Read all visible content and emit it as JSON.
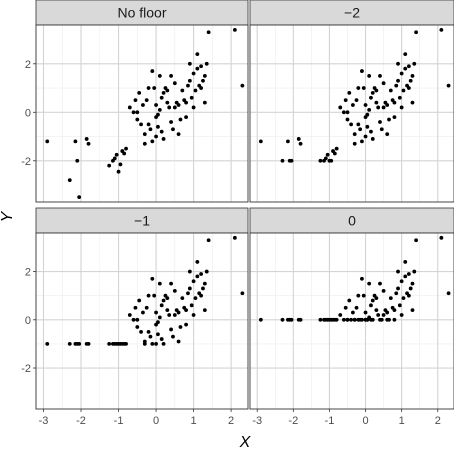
{
  "chart_data": {
    "type": "scatter",
    "xlabel": "X",
    "ylabel": "Y",
    "xlim": [
      -3.2,
      2.45
    ],
    "ylim": [
      -3.7,
      3.6
    ],
    "x_ticks": [
      -3,
      -2,
      -1,
      0,
      1,
      2
    ],
    "x_tick_labels": [
      "-3",
      "-2",
      "-1",
      "0",
      "1",
      "2"
    ],
    "y_ticks": [
      -2,
      0,
      2
    ],
    "y_tick_labels": [
      "-2",
      "0",
      "2"
    ],
    "grid": true,
    "colors": {
      "panel_bg": "#ffffff",
      "panel_border": "#333333",
      "grid_major": "#d4d4d4",
      "grid_minor": "#ececec",
      "strip_bg": "#d9d9d9",
      "point": "#000000"
    },
    "base_points": [
      [
        -2.9,
        -1.2
      ],
      [
        -2.3,
        -2.8
      ],
      [
        -2.15,
        -1.2
      ],
      [
        -2.1,
        -2.0
      ],
      [
        -2.05,
        -3.5
      ],
      [
        -1.85,
        -1.1
      ],
      [
        -1.8,
        -1.3
      ],
      [
        -1.25,
        -2.2
      ],
      [
        -1.15,
        -2.0
      ],
      [
        -1.1,
        -1.9
      ],
      [
        -1.05,
        -1.75
      ],
      [
        -1.0,
        -2.45
      ],
      [
        -0.95,
        -2.15
      ],
      [
        -0.9,
        -1.6
      ],
      [
        -0.85,
        -1.7
      ],
      [
        -0.8,
        -1.5
      ],
      [
        -0.7,
        0.2
      ],
      [
        -0.6,
        0.0
      ],
      [
        -0.55,
        0.5
      ],
      [
        -0.5,
        -0.3
      ],
      [
        -0.45,
        0.8
      ],
      [
        -0.4,
        -0.5
      ],
      [
        -0.35,
        0.3
      ],
      [
        -0.3,
        -0.9
      ],
      [
        -0.25,
        0.5
      ],
      [
        -0.2,
        1.0
      ],
      [
        -0.15,
        -0.7
      ],
      [
        -0.1,
        1.7
      ],
      [
        -0.1,
        -1.2
      ],
      [
        -0.05,
        1.0
      ],
      [
        0.0,
        -0.2
      ],
      [
        0.0,
        0.3
      ],
      [
        0.05,
        -0.6
      ],
      [
        0.1,
        0.1
      ],
      [
        0.1,
        1.5
      ],
      [
        0.15,
        -0.8
      ],
      [
        0.2,
        0.8
      ],
      [
        0.25,
        1.0
      ],
      [
        0.3,
        0.4
      ],
      [
        0.35,
        0.2
      ],
      [
        0.4,
        -0.4
      ],
      [
        0.45,
        -0.7
      ],
      [
        0.5,
        1.2
      ],
      [
        0.55,
        0.4
      ],
      [
        0.6,
        0.3
      ],
      [
        0.65,
        -0.3
      ],
      [
        0.7,
        0.9
      ],
      [
        0.75,
        0.5
      ],
      [
        0.8,
        0.4
      ],
      [
        0.85,
        1.1
      ],
      [
        0.9,
        1.3
      ],
      [
        0.95,
        0.6
      ],
      [
        1.0,
        1.6
      ],
      [
        1.05,
        0.9
      ],
      [
        1.1,
        2.4
      ],
      [
        1.15,
        1.1
      ],
      [
        1.2,
        1.9
      ],
      [
        1.25,
        1.3
      ],
      [
        1.3,
        0.4
      ],
      [
        1.35,
        2.0
      ],
      [
        1.4,
        3.3
      ],
      [
        2.1,
        3.4
      ],
      [
        2.3,
        1.1
      ],
      [
        0.2,
        -1.1
      ],
      [
        0.0,
        -1.0
      ],
      [
        -0.3,
        -1.3
      ],
      [
        -0.2,
        -0.5
      ],
      [
        0.3,
        0.9
      ],
      [
        0.5,
        0.2
      ],
      [
        1.0,
        0.2
      ],
      [
        1.2,
        1.0
      ],
      [
        1.3,
        1.5
      ],
      [
        0.6,
        -0.9
      ],
      [
        -0.5,
        0.0
      ],
      [
        0.8,
        -0.2
      ],
      [
        0.15,
        0.6
      ],
      [
        0.4,
        1.5
      ],
      [
        0.9,
        2.0
      ],
      [
        1.1,
        1.8
      ],
      [
        0.05,
        -0.1
      ]
    ],
    "panels": [
      {
        "label": "No floor",
        "floor": null
      },
      {
        "label": "−2",
        "floor": -2
      },
      {
        "label": "−1",
        "floor": -1
      },
      {
        "label": "0",
        "floor": 0
      }
    ]
  }
}
